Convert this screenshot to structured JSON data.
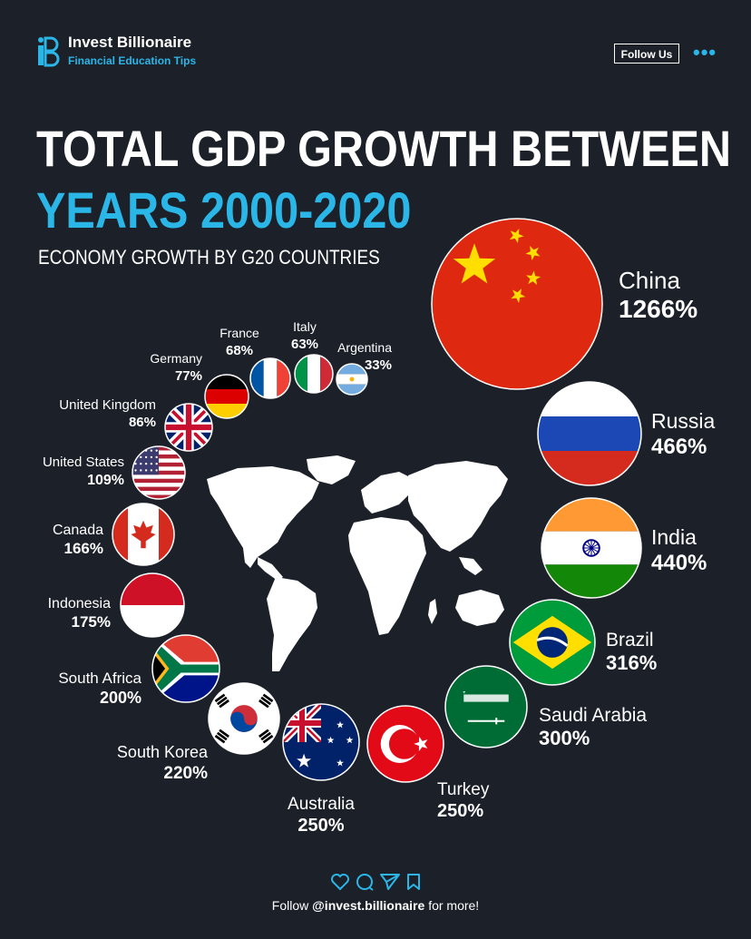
{
  "brand": {
    "name": "Invest Billionaire",
    "tagline": "Financial Education Tips",
    "follow_label": "Follow Us",
    "more_icon": "more-dots-icon"
  },
  "colors": {
    "background": "#1c2029",
    "accent": "#2bb6e8",
    "text": "#ffffff"
  },
  "chart_data": {
    "type": "bubble",
    "title_line1": "TOTAL GDP GROWTH BETWEEN",
    "title_line2": "YEARS 2000-2020",
    "subtitle": "ECONOMY GROWTH BY G20 COUNTRIES",
    "unit": "%",
    "series": [
      {
        "country": "China",
        "value": 1266,
        "label": "1266%",
        "flag": "china"
      },
      {
        "country": "Russia",
        "value": 466,
        "label": "466%",
        "flag": "russia"
      },
      {
        "country": "India",
        "value": 440,
        "label": "440%",
        "flag": "india"
      },
      {
        "country": "Brazil",
        "value": 316,
        "label": "316%",
        "flag": "brazil"
      },
      {
        "country": "Saudi Arabia",
        "value": 300,
        "label": "300%",
        "flag": "saudi-arabia"
      },
      {
        "country": "Turkey",
        "value": 250,
        "label": "250%",
        "flag": "turkey"
      },
      {
        "country": "Australia",
        "value": 250,
        "label": "250%",
        "flag": "australia"
      },
      {
        "country": "South Korea",
        "value": 220,
        "label": "220%",
        "flag": "south-korea"
      },
      {
        "country": "South Africa",
        "value": 200,
        "label": "200%",
        "flag": "south-africa"
      },
      {
        "country": "Indonesia",
        "value": 175,
        "label": "175%",
        "flag": "indonesia"
      },
      {
        "country": "Canada",
        "value": 166,
        "label": "166%",
        "flag": "canada"
      },
      {
        "country": "United States",
        "value": 109,
        "label": "109%",
        "flag": "united-states"
      },
      {
        "country": "United Kingdom",
        "value": 86,
        "label": "86%",
        "flag": "united-kingdom"
      },
      {
        "country": "Germany",
        "value": 77,
        "label": "77%",
        "flag": "germany"
      },
      {
        "country": "France",
        "value": 68,
        "label": "68%",
        "flag": "france"
      },
      {
        "country": "Italy",
        "value": 63,
        "label": "63%",
        "flag": "italy"
      },
      {
        "country": "Argentina",
        "value": 33,
        "label": "33%",
        "flag": "argentina"
      }
    ]
  },
  "footer": {
    "follow_prefix": "Follow",
    "handle": "@invest.billionaire",
    "follow_suffix": "for more!",
    "icons": [
      "heart-icon",
      "comment-icon",
      "share-icon",
      "bookmark-icon"
    ]
  }
}
